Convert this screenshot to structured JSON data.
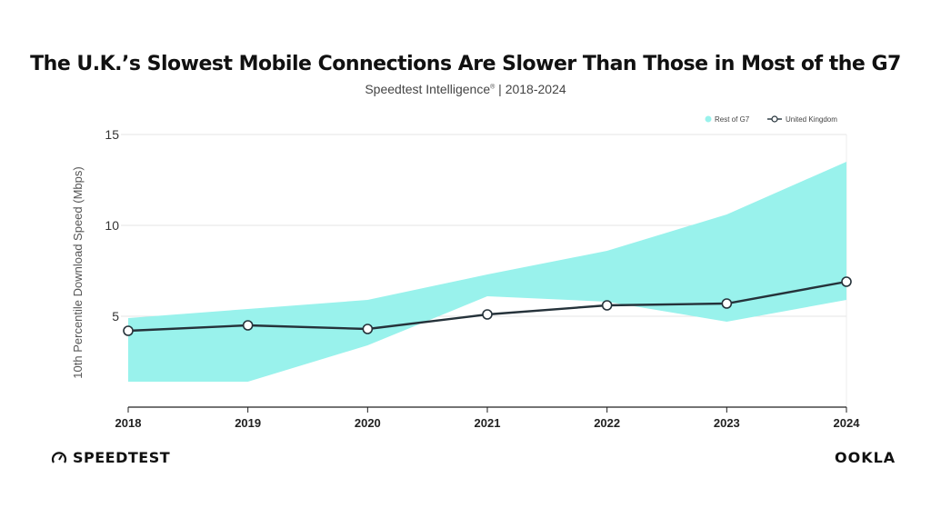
{
  "title": "The U.K.’s Slowest Mobile Connections Are Slower Than Those in Most of the G7",
  "subtitle": {
    "source": "Speedtest Intelligence",
    "mark": "®",
    "range": "| 2018-2024"
  },
  "chart_data": {
    "type": "line",
    "ylabel": "10th Percentile Download Speed (Mbps)",
    "xlabel": "",
    "categories": [
      "2018",
      "2019",
      "2020",
      "2021",
      "2022",
      "2023",
      "2024"
    ],
    "yticks": [
      "5",
      "10",
      "15"
    ],
    "ylim": [
      0,
      15
    ],
    "grid": true,
    "legend_position": "top-right",
    "band": {
      "name": "Rest of G7",
      "color": "#99f2ec",
      "low": [
        1.4,
        1.4,
        3.4,
        6.1,
        5.8,
        4.7,
        5.9
      ],
      "high": [
        4.9,
        5.4,
        5.9,
        7.3,
        8.6,
        10.6,
        13.5
      ]
    },
    "series": [
      {
        "name": "United Kingdom",
        "color": "#25323a",
        "values": [
          4.2,
          4.5,
          4.3,
          5.1,
          5.6,
          5.7,
          6.9
        ]
      }
    ]
  },
  "footer": {
    "left_logo": "SPEEDTEST",
    "right_logo": "OOKLA"
  }
}
